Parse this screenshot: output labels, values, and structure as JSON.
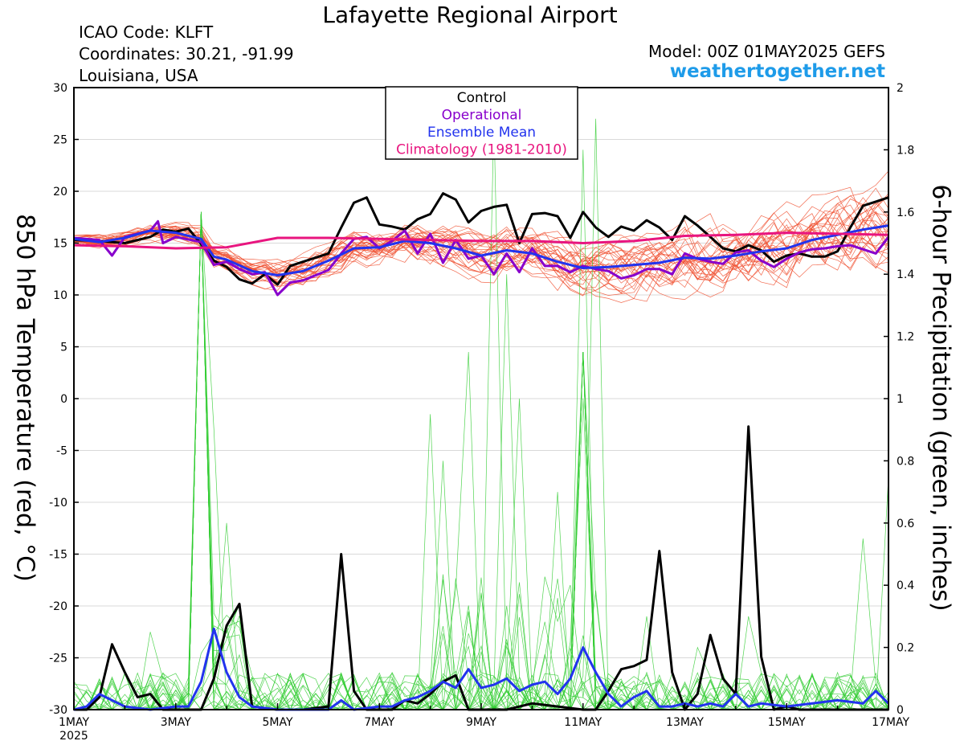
{
  "header": {
    "title": "Lafayette Regional Airport",
    "icao": "ICAO Code: KLFT",
    "coords": "Coordinates: 30.21, -91.99",
    "location": "Louisiana, USA",
    "model": "Model: 00Z 01MAY2025 GEFS",
    "brand": "weathertogether.net"
  },
  "chart_data": {
    "type": "line",
    "x_unit": "days since 1MAY2025 00Z",
    "x_ticks": [
      "1MAY",
      "3MAY",
      "5MAY",
      "7MAY",
      "9MAY",
      "11MAY",
      "13MAY",
      "15MAY",
      "17MAY"
    ],
    "x_year_label": "2025",
    "ylabel_left": "850 hPa Temperature (red, °C)",
    "ylabel_right": "6-hour Precipitation (green, inches)",
    "ylim_left": [
      -30,
      30
    ],
    "ylim_right": [
      0,
      2
    ],
    "yticks_left": [
      -30,
      -25,
      -20,
      -15,
      -10,
      -5,
      0,
      5,
      10,
      15,
      20,
      25,
      30
    ],
    "yticks_right": [
      0,
      0.2,
      0.4,
      0.6,
      0.8,
      1,
      1.2,
      1.4,
      1.6,
      1.8,
      2
    ],
    "legend": [
      {
        "label": "Control",
        "color": "#000000"
      },
      {
        "label": "Operational",
        "color": "#8800cc"
      },
      {
        "label": "Ensemble Mean",
        "color": "#2233ee"
      },
      {
        "label": "Climatology (1981-2010)",
        "color": "#e8157f"
      }
    ],
    "colors": {
      "members_temp": "#f05030",
      "members_precip": "#33cc33",
      "control": "#000000",
      "operational": "#8800cc",
      "mean": "#2233ee",
      "climatology": "#e8157f"
    },
    "temp_series": [
      {
        "name": "Control",
        "points": [
          [
            0,
            15.3
          ],
          [
            0.5,
            15.2
          ],
          [
            1,
            15.0
          ],
          [
            1.5,
            15.6
          ],
          [
            1.75,
            16.3
          ],
          [
            2,
            16.1
          ],
          [
            2.25,
            16.4
          ],
          [
            2.5,
            14.9
          ],
          [
            2.75,
            13.3
          ],
          [
            3,
            12.7
          ],
          [
            3.25,
            11.5
          ],
          [
            3.5,
            11.1
          ],
          [
            3.75,
            12.0
          ],
          [
            4,
            11.0
          ],
          [
            4.25,
            12.8
          ],
          [
            4.5,
            13.2
          ],
          [
            5,
            14.0
          ],
          [
            5.25,
            16.5
          ],
          [
            5.5,
            18.9
          ],
          [
            5.75,
            19.4
          ],
          [
            6,
            16.8
          ],
          [
            6.25,
            16.6
          ],
          [
            6.5,
            16.3
          ],
          [
            6.75,
            17.3
          ],
          [
            7,
            17.8
          ],
          [
            7.25,
            19.8
          ],
          [
            7.5,
            19.2
          ],
          [
            7.75,
            17.0
          ],
          [
            8,
            18.1
          ],
          [
            8.25,
            18.5
          ],
          [
            8.5,
            18.7
          ],
          [
            8.75,
            15.0
          ],
          [
            9,
            17.8
          ],
          [
            9.25,
            17.9
          ],
          [
            9.5,
            17.6
          ],
          [
            9.75,
            15.5
          ],
          [
            10,
            18.0
          ],
          [
            10.25,
            16.5
          ],
          [
            10.5,
            15.6
          ],
          [
            10.75,
            16.6
          ],
          [
            11,
            16.2
          ],
          [
            11.25,
            17.2
          ],
          [
            11.5,
            16.5
          ],
          [
            11.75,
            15.3
          ],
          [
            12,
            17.6
          ],
          [
            12.25,
            16.7
          ],
          [
            12.5,
            15.6
          ],
          [
            12.75,
            14.5
          ],
          [
            13,
            14.2
          ],
          [
            13.25,
            14.8
          ],
          [
            13.5,
            14.3
          ],
          [
            13.75,
            13.2
          ],
          [
            14,
            13.8
          ],
          [
            14.25,
            14.0
          ],
          [
            14.5,
            13.7
          ],
          [
            14.75,
            13.7
          ],
          [
            15,
            14.2
          ],
          [
            15.25,
            16.5
          ],
          [
            15.5,
            18.6
          ],
          [
            15.75,
            19.0
          ],
          [
            16,
            19.4
          ]
        ]
      },
      {
        "name": "Operational",
        "points": [
          [
            0,
            15.5
          ],
          [
            0.5,
            15.3
          ],
          [
            0.75,
            13.8
          ],
          [
            1,
            15.6
          ],
          [
            1.5,
            16.2
          ],
          [
            1.65,
            17.1
          ],
          [
            1.75,
            15.0
          ],
          [
            2,
            15.6
          ],
          [
            2.5,
            15.1
          ],
          [
            2.75,
            12.9
          ],
          [
            3,
            13.2
          ],
          [
            3.25,
            12.5
          ],
          [
            3.5,
            12.0
          ],
          [
            3.75,
            12.2
          ],
          [
            4,
            10.0
          ],
          [
            4.25,
            11.2
          ],
          [
            4.5,
            11.4
          ],
          [
            5,
            12.4
          ],
          [
            5.25,
            14.0
          ],
          [
            5.5,
            15.4
          ],
          [
            5.75,
            15.6
          ],
          [
            6,
            14.5
          ],
          [
            6.25,
            15.2
          ],
          [
            6.5,
            16.2
          ],
          [
            6.75,
            14.0
          ],
          [
            7,
            15.9
          ],
          [
            7.25,
            13.1
          ],
          [
            7.5,
            15.3
          ],
          [
            7.75,
            13.5
          ],
          [
            8,
            13.8
          ],
          [
            8.25,
            12.0
          ],
          [
            8.5,
            14.0
          ],
          [
            8.75,
            12.2
          ],
          [
            9,
            14.5
          ],
          [
            9.25,
            12.8
          ],
          [
            9.5,
            12.8
          ],
          [
            9.75,
            12.2
          ],
          [
            10,
            12.8
          ],
          [
            10.25,
            12.5
          ],
          [
            10.5,
            12.3
          ],
          [
            10.75,
            11.6
          ],
          [
            11,
            11.9
          ],
          [
            11.25,
            12.5
          ],
          [
            11.5,
            12.5
          ],
          [
            11.75,
            12.0
          ],
          [
            12,
            14.0
          ],
          [
            12.25,
            13.5
          ],
          [
            12.5,
            13.2
          ],
          [
            12.75,
            13.0
          ],
          [
            13,
            14.1
          ],
          [
            13.25,
            14.3
          ],
          [
            13.5,
            13.3
          ],
          [
            13.75,
            12.7
          ],
          [
            14,
            13.5
          ],
          [
            14.25,
            14.1
          ],
          [
            14.5,
            14.4
          ],
          [
            14.75,
            14.5
          ],
          [
            15,
            14.7
          ],
          [
            15.25,
            14.8
          ],
          [
            15.5,
            14.4
          ],
          [
            15.75,
            14.0
          ],
          [
            16,
            15.6
          ]
        ]
      },
      {
        "name": "Ensemble Mean",
        "points": [
          [
            0,
            15.4
          ],
          [
            0.5,
            15.1
          ],
          [
            1,
            15.5
          ],
          [
            1.5,
            16.2
          ],
          [
            2,
            16.0
          ],
          [
            2.5,
            15.4
          ],
          [
            2.75,
            13.7
          ],
          [
            3,
            13.4
          ],
          [
            3.5,
            12.3
          ],
          [
            4,
            11.9
          ],
          [
            4.5,
            12.3
          ],
          [
            5,
            13.3
          ],
          [
            5.5,
            14.5
          ],
          [
            6,
            14.6
          ],
          [
            6.5,
            15.2
          ],
          [
            7,
            15.0
          ],
          [
            7.5,
            14.5
          ],
          [
            8,
            13.8
          ],
          [
            8.5,
            14.3
          ],
          [
            9,
            14.0
          ],
          [
            9.5,
            13.2
          ],
          [
            10,
            12.6
          ],
          [
            10.5,
            12.7
          ],
          [
            11,
            12.9
          ],
          [
            11.5,
            13.1
          ],
          [
            12,
            13.6
          ],
          [
            12.5,
            13.5
          ],
          [
            13,
            13.8
          ],
          [
            13.5,
            14.2
          ],
          [
            14,
            14.5
          ],
          [
            14.5,
            15.3
          ],
          [
            15,
            15.8
          ],
          [
            15.5,
            16.3
          ],
          [
            16,
            16.7
          ]
        ]
      },
      {
        "name": "Climatology (1981-2010)",
        "points": [
          [
            0,
            14.8
          ],
          [
            1,
            14.7
          ],
          [
            2,
            14.5
          ],
          [
            3,
            14.6
          ],
          [
            4,
            15.5
          ],
          [
            5,
            15.5
          ],
          [
            6,
            15.4
          ],
          [
            7,
            15.3
          ],
          [
            8,
            15.2
          ],
          [
            9,
            15.2
          ],
          [
            10,
            15.0
          ],
          [
            11,
            15.2
          ],
          [
            12,
            15.7
          ],
          [
            13,
            15.8
          ],
          [
            14,
            16.0
          ],
          [
            15,
            15.9
          ],
          [
            16,
            15.8
          ]
        ]
      }
    ],
    "precip_series": [
      {
        "name": "Control",
        "points": [
          [
            0,
            0
          ],
          [
            0.25,
            0.0
          ],
          [
            0.5,
            0.04
          ],
          [
            0.75,
            0.21
          ],
          [
            1,
            0.12
          ],
          [
            1.25,
            0.04
          ],
          [
            1.5,
            0.05
          ],
          [
            1.75,
            0
          ],
          [
            2,
            0
          ],
          [
            2.25,
            0
          ],
          [
            2.5,
            0
          ],
          [
            2.75,
            0.1
          ],
          [
            3,
            0.27
          ],
          [
            3.25,
            0.34
          ],
          [
            3.5,
            0.01
          ],
          [
            4,
            0
          ],
          [
            4.5,
            0
          ],
          [
            5,
            0.01
          ],
          [
            5.25,
            0.5
          ],
          [
            5.5,
            0.06
          ],
          [
            5.75,
            0
          ],
          [
            6,
            0
          ],
          [
            6.25,
            0
          ],
          [
            6.5,
            0.03
          ],
          [
            6.75,
            0.02
          ],
          [
            7,
            0.05
          ],
          [
            7.25,
            0.09
          ],
          [
            7.5,
            0.11
          ],
          [
            7.75,
            0
          ],
          [
            8,
            0
          ],
          [
            8.5,
            0
          ],
          [
            9,
            0.02
          ],
          [
            9.5,
            0.01
          ],
          [
            10,
            0
          ],
          [
            10.25,
            0
          ],
          [
            10.5,
            0.06
          ],
          [
            10.75,
            0.13
          ],
          [
            11,
            0.14
          ],
          [
            11.25,
            0.16
          ],
          [
            11.5,
            0.51
          ],
          [
            11.75,
            0.12
          ],
          [
            12,
            0
          ],
          [
            12.25,
            0.05
          ],
          [
            12.5,
            0.24
          ],
          [
            12.75,
            0.1
          ],
          [
            13,
            0.05
          ],
          [
            13.25,
            0.91
          ],
          [
            13.5,
            0.17
          ],
          [
            13.75,
            0
          ],
          [
            14,
            0.01
          ],
          [
            14.25,
            0
          ],
          [
            14.5,
            0
          ],
          [
            15,
            0
          ],
          [
            15.5,
            0
          ],
          [
            16,
            0
          ]
        ]
      },
      {
        "name": "Ensemble Mean",
        "points": [
          [
            0,
            0
          ],
          [
            0.25,
            0.01
          ],
          [
            0.5,
            0.05
          ],
          [
            0.75,
            0.03
          ],
          [
            1,
            0.01
          ],
          [
            1.5,
            0.0
          ],
          [
            2,
            0.01
          ],
          [
            2.25,
            0.01
          ],
          [
            2.5,
            0.09
          ],
          [
            2.75,
            0.26
          ],
          [
            3,
            0.12
          ],
          [
            3.25,
            0.04
          ],
          [
            3.5,
            0.01
          ],
          [
            4,
            0.0
          ],
          [
            4.5,
            0.0
          ],
          [
            5,
            0.0
          ],
          [
            5.25,
            0.03
          ],
          [
            5.5,
            0.0
          ],
          [
            6,
            0.01
          ],
          [
            6.25,
            0.01
          ],
          [
            6.5,
            0.03
          ],
          [
            6.75,
            0.04
          ],
          [
            7,
            0.06
          ],
          [
            7.25,
            0.09
          ],
          [
            7.5,
            0.07
          ],
          [
            7.75,
            0.13
          ],
          [
            8,
            0.07
          ],
          [
            8.25,
            0.08
          ],
          [
            8.5,
            0.1
          ],
          [
            8.75,
            0.06
          ],
          [
            9,
            0.08
          ],
          [
            9.25,
            0.09
          ],
          [
            9.5,
            0.05
          ],
          [
            9.75,
            0.1
          ],
          [
            10,
            0.2
          ],
          [
            10.25,
            0.12
          ],
          [
            10.5,
            0.05
          ],
          [
            10.75,
            0.01
          ],
          [
            11,
            0.04
          ],
          [
            11.25,
            0.06
          ],
          [
            11.5,
            0.01
          ],
          [
            11.75,
            0.01
          ],
          [
            12,
            0.02
          ],
          [
            12.25,
            0.01
          ],
          [
            12.5,
            0.02
          ],
          [
            12.75,
            0.01
          ],
          [
            13,
            0.05
          ],
          [
            13.25,
            0.01
          ],
          [
            13.5,
            0.02
          ],
          [
            14,
            0.01
          ],
          [
            14.5,
            0.02
          ],
          [
            15,
            0.03
          ],
          [
            15.5,
            0.02
          ],
          [
            15.75,
            0.06
          ],
          [
            16,
            0.02
          ]
        ]
      }
    ]
  }
}
